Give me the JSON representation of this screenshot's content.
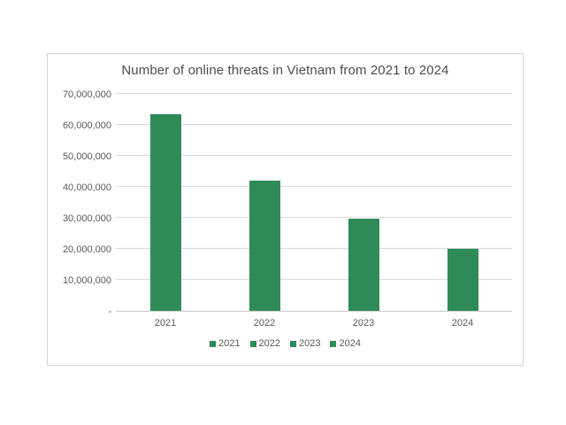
{
  "page": {
    "background_color": "#ffffff"
  },
  "chart_card": {
    "background_color": "#ffffff",
    "border_color": "#d4d4d4"
  },
  "chart_data": {
    "type": "bar",
    "title": "Number of online threats in Vietnam from 2021 to 2024",
    "categories": [
      "2021",
      "2022",
      "2023",
      "2024"
    ],
    "values": [
      63500000,
      42000000,
      29600000,
      19900000
    ],
    "xlabel": "",
    "ylabel": "",
    "ylim": [
      0,
      70000000
    ],
    "ytick_step": 10000000,
    "ytick_labels": [
      "-",
      "10,000,000",
      "20,000,000",
      "30,000,000",
      "40,000,000",
      "50,000,000",
      "60,000,000",
      "70,000,000"
    ],
    "grid": true,
    "legend_entries": [
      "2021",
      "2022",
      "2023",
      "2024"
    ],
    "legend_position": "bottom",
    "colors": {
      "bar_fill": "#2E8B57",
      "gridline": "#d9d9d9",
      "axis_line": "#c8c8c8",
      "tick_text": "#595959",
      "title_text": "#4d4d4d"
    }
  }
}
